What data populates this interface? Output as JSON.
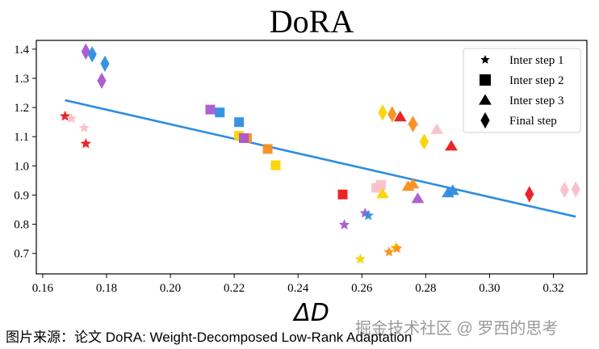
{
  "chart_data": {
    "type": "scatter",
    "title": "DoRA",
    "xlabel": "ΔD",
    "ylabel": "",
    "xlim": [
      0.158,
      0.3305
    ],
    "ylim": [
      0.63,
      1.43
    ],
    "xticks": [
      0.16,
      0.18,
      0.2,
      0.22,
      0.24,
      0.26,
      0.28,
      0.3,
      0.32
    ],
    "xtick_labels": [
      "0.16",
      "0.18",
      "0.20",
      "0.22",
      "0.24",
      "0.26",
      "0.28",
      "0.30",
      "0.32"
    ],
    "yticks": [
      0.7,
      0.8,
      0.9,
      1.0,
      1.1,
      1.2,
      1.3,
      1.4
    ],
    "ytick_labels": [
      "0.7",
      "0.8",
      "0.9",
      "1.0",
      "1.1",
      "1.2",
      "1.3",
      "1.4"
    ],
    "grid": false,
    "legend": {
      "position": "top-right",
      "entries": [
        {
          "label": "Inter step 1",
          "marker": "star"
        },
        {
          "label": "Inter step 2",
          "marker": "square"
        },
        {
          "label": "Inter step 3",
          "marker": "triangle"
        },
        {
          "label": "Final step",
          "marker": "diamond"
        }
      ]
    },
    "fit_line": {
      "x": [
        0.167,
        0.327
      ],
      "y": [
        1.225,
        0.826
      ],
      "color": "#2e8de0"
    },
    "series": [
      {
        "name": "Inter step 1",
        "marker": "star",
        "points": [
          {
            "x": 0.167,
            "y": 1.17,
            "color": "#e8191b"
          },
          {
            "x": 0.169,
            "y": 1.162,
            "color": "#f9c0cb"
          },
          {
            "x": 0.173,
            "y": 1.13,
            "color": "#f9c0cb"
          },
          {
            "x": 0.1735,
            "y": 1.076,
            "color": "#e8191b"
          },
          {
            "x": 0.2545,
            "y": 0.798,
            "color": "#a957d0"
          },
          {
            "x": 0.261,
            "y": 0.838,
            "color": "#a957d0"
          },
          {
            "x": 0.262,
            "y": 0.83,
            "color": "#2e8de0"
          },
          {
            "x": 0.2595,
            "y": 0.68,
            "color": "#fbd300"
          },
          {
            "x": 0.2685,
            "y": 0.705,
            "color": "#f5901d"
          },
          {
            "x": 0.2705,
            "y": 0.72,
            "color": "#fbd300"
          },
          {
            "x": 0.271,
            "y": 0.717,
            "color": "#f5901d"
          }
        ]
      },
      {
        "name": "Inter step 2",
        "marker": "square",
        "points": [
          {
            "x": 0.2125,
            "y": 1.193,
            "color": "#a957d0"
          },
          {
            "x": 0.2155,
            "y": 1.183,
            "color": "#2e8de0"
          },
          {
            "x": 0.2215,
            "y": 1.15,
            "color": "#2e8de0"
          },
          {
            "x": 0.2215,
            "y": 1.103,
            "color": "#fbd300"
          },
          {
            "x": 0.224,
            "y": 1.095,
            "color": "#f5901d"
          },
          {
            "x": 0.223,
            "y": 1.095,
            "color": "#a957d0"
          },
          {
            "x": 0.2305,
            "y": 1.058,
            "color": "#f5901d"
          },
          {
            "x": 0.233,
            "y": 1.002,
            "color": "#fbd300"
          },
          {
            "x": 0.254,
            "y": 0.902,
            "color": "#e8191b"
          },
          {
            "x": 0.2645,
            "y": 0.925,
            "color": "#f9c0cb"
          },
          {
            "x": 0.266,
            "y": 0.935,
            "color": "#f9c0cb"
          }
        ]
      },
      {
        "name": "Inter step 3",
        "marker": "triangle",
        "points": [
          {
            "x": 0.272,
            "y": 1.168,
            "color": "#e8191b"
          },
          {
            "x": 0.276,
            "y": 1.153,
            "color": "#f9c0cb"
          },
          {
            "x": 0.2835,
            "y": 1.125,
            "color": "#f9c0cb"
          },
          {
            "x": 0.288,
            "y": 1.068,
            "color": "#e8191b"
          },
          {
            "x": 0.2665,
            "y": 0.905,
            "color": "#fbd300"
          },
          {
            "x": 0.2745,
            "y": 0.93,
            "color": "#f5901d"
          },
          {
            "x": 0.276,
            "y": 0.938,
            "color": "#f5901d"
          },
          {
            "x": 0.2775,
            "y": 0.888,
            "color": "#a957d0"
          },
          {
            "x": 0.287,
            "y": 0.908,
            "color": "#2e8de0"
          },
          {
            "x": 0.2885,
            "y": 0.916,
            "color": "#2e8de0"
          }
        ]
      },
      {
        "name": "Final step",
        "marker": "diamond",
        "points": [
          {
            "x": 0.1735,
            "y": 1.392,
            "color": "#a957d0"
          },
          {
            "x": 0.1755,
            "y": 1.382,
            "color": "#2e8de0"
          },
          {
            "x": 0.1795,
            "y": 1.35,
            "color": "#2e8de0"
          },
          {
            "x": 0.1785,
            "y": 1.292,
            "color": "#a957d0"
          },
          {
            "x": 0.2665,
            "y": 1.183,
            "color": "#fbd300"
          },
          {
            "x": 0.2695,
            "y": 1.177,
            "color": "#f5901d"
          },
          {
            "x": 0.276,
            "y": 1.143,
            "color": "#f5901d"
          },
          {
            "x": 0.2795,
            "y": 1.083,
            "color": "#fbd300"
          },
          {
            "x": 0.3125,
            "y": 0.903,
            "color": "#e8191b"
          },
          {
            "x": 0.3235,
            "y": 0.918,
            "color": "#f9c0cb"
          },
          {
            "x": 0.327,
            "y": 0.92,
            "color": "#f9c0cb"
          }
        ]
      }
    ]
  },
  "caption": "图片来源：论文 DoRA: Weight-Decomposed Low-Rank Adaptation",
  "watermark": "掘金技术社区 @ 罗西的思考"
}
